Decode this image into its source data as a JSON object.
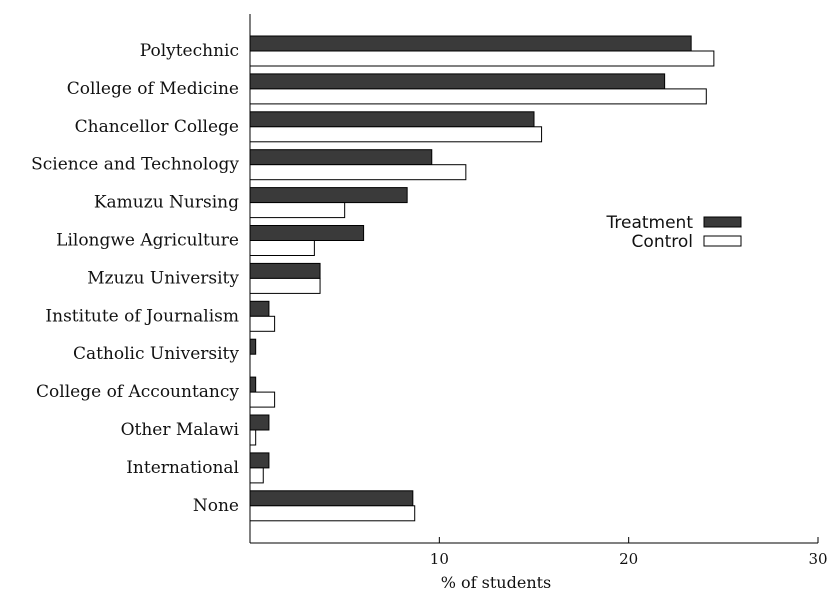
{
  "chart_data": {
    "type": "bar",
    "orientation": "horizontal",
    "title": "",
    "xlabel": "% of students",
    "ylabel": "",
    "xlim": [
      0,
      30
    ],
    "xticks": [
      10,
      20,
      30
    ],
    "grid": false,
    "legend_position": "right",
    "categories": [
      "Polytechnic",
      "College of Medicine",
      "Chancellor College",
      "Science and Technology",
      "Kamuzu Nursing",
      "Lilongwe Agriculture",
      "Mzuzu University",
      "Institute of Journalism",
      "Catholic University",
      "College of Accountancy",
      "Other Malawi",
      "International",
      "None"
    ],
    "series": [
      {
        "name": "Treatment",
        "color": "#3a3a3a",
        "values": [
          23.3,
          21.9,
          15.0,
          9.6,
          8.3,
          6.0,
          3.7,
          1.0,
          0.3,
          0.3,
          1.0,
          1.0,
          8.6
        ]
      },
      {
        "name": "Control",
        "color": "#ffffff",
        "values": [
          24.5,
          24.1,
          15.4,
          11.4,
          5.0,
          3.4,
          3.7,
          1.3,
          0.0,
          1.3,
          0.3,
          0.7,
          8.7
        ]
      }
    ]
  }
}
